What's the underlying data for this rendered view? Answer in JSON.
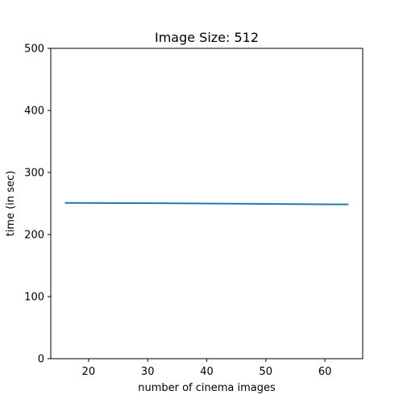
{
  "chart_data": {
    "type": "line",
    "title": "Image Size: 512",
    "xlabel": "number of cinema images",
    "ylabel": "time (in sec)",
    "xlim": [
      13.6,
      66.4
    ],
    "ylim": [
      0,
      500
    ],
    "xticks": [
      20,
      30,
      40,
      50,
      60
    ],
    "yticks": [
      0,
      100,
      200,
      300,
      400,
      500
    ],
    "grid": false,
    "series": [
      {
        "x": [
          16,
          32,
          48,
          64
        ],
        "y": [
          251,
          250.5,
          249.5,
          248.5
        ],
        "color": "#1f77b4"
      }
    ]
  }
}
